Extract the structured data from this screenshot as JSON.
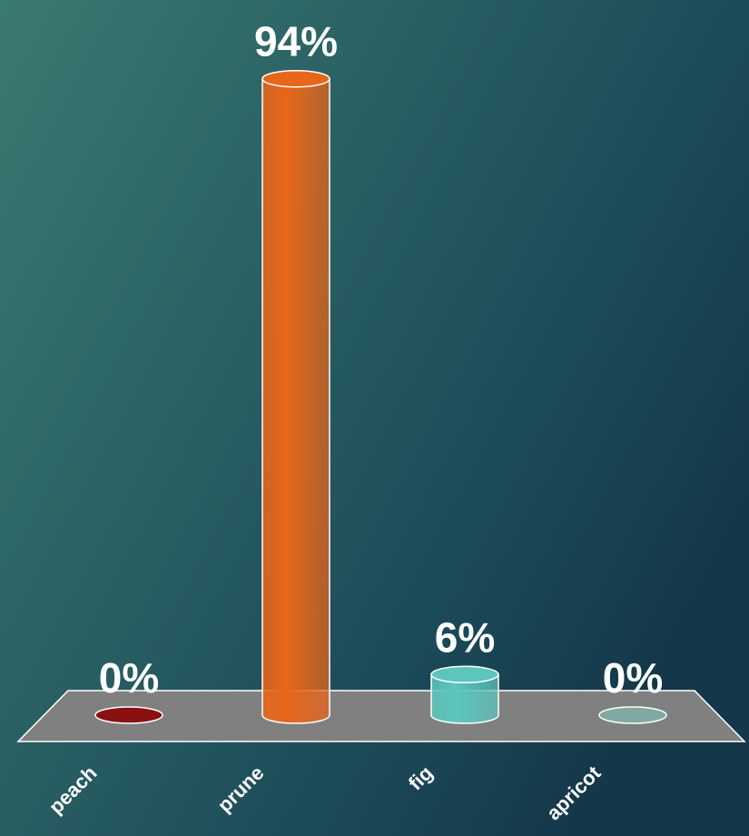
{
  "chart_data": {
    "type": "bar",
    "categories": [
      "peach",
      "prune",
      "fig",
      "apricot"
    ],
    "values": [
      0,
      94,
      6,
      0
    ],
    "value_labels": [
      "0%",
      "94%",
      "6%",
      "0%"
    ],
    "colors": [
      "#8b1111",
      "#e8661a",
      "#5cc6bd",
      "#7fa9a2"
    ]
  }
}
